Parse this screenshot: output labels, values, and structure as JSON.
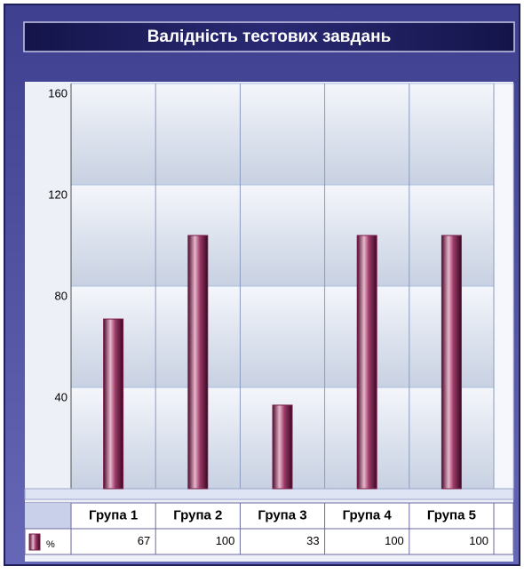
{
  "chart_data": {
    "type": "bar",
    "title": "Валідність тестових завдань",
    "categories": [
      "Група 1",
      "Група 2",
      "Група 3",
      "Група 4",
      "Група 5"
    ],
    "series": [
      {
        "name": "%",
        "color": "#7a1c4c",
        "values": [
          67,
          100,
          33,
          100,
          100
        ]
      }
    ],
    "ylim": [
      0,
      160
    ],
    "yticks": [
      40,
      80,
      120,
      160
    ],
    "grid": true
  }
}
